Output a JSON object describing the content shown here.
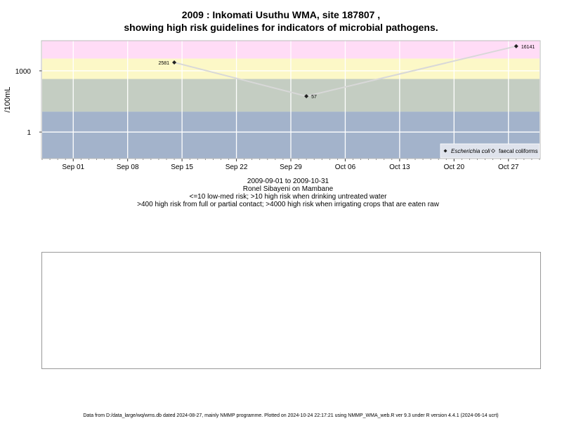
{
  "title_line1": "2009 : Inkomati Usuthu WMA, site 187807 ,",
  "title_line2": "showing high risk guidelines for indicators of microbial pathogens.",
  "subtitle": {
    "range": "2009-09-01 to 2009-10-31",
    "sampler": "Ronel Sibayeni on Mambane",
    "note1": "<=10 low-med risk; >10 high risk when drinking untreated water",
    "note2": ">400 high risk from full or partial contact; >4000 high risk when irrigating crops that are eaten raw"
  },
  "footer": "Data from D:/data_large/wq/wms.db dated 2024-08-27, mainly NMMP programme. Plotted on 2024-10-24 22:17:21 using NMMP_WMA_web.R ver 9.3 under R version 4.4.1 (2024-06-14 ucrt)",
  "colors": {
    "band_low": "#a3b3cb",
    "band_med": "#c4cdc2",
    "band_high": "#fcf8c7",
    "band_very_high": "#ffdcf6",
    "line": "#d8d8d8",
    "marker": "#222222"
  },
  "chart_data": {
    "type": "line",
    "ylabel": "/100mL",
    "y_scale": "log10",
    "ylim": [
      0.05,
      30000
    ],
    "yticks": [
      1,
      1000
    ],
    "ytick_labels": [
      "1",
      "1000"
    ],
    "xlim": [
      "2009-08-28",
      "2009-10-31"
    ],
    "xticks": [
      "2009-09-01",
      "2009-09-08",
      "2009-09-15",
      "2009-09-22",
      "2009-09-29",
      "2009-10-06",
      "2009-10-13",
      "2009-10-20",
      "2009-10-27"
    ],
    "xtick_labels": [
      "Sep 01",
      "Sep 08",
      "Sep 15",
      "Sep 22",
      "Sep 29",
      "Oct 06",
      "Oct 13",
      "Oct 20",
      "Oct 27"
    ],
    "grid": true,
    "risk_bands": [
      {
        "from": 0.05,
        "to": 10,
        "color": "#a3b3cb"
      },
      {
        "from": 10,
        "to": 400,
        "color": "#c4cdc2"
      },
      {
        "from": 400,
        "to": 4000,
        "color": "#fcf8c7"
      },
      {
        "from": 4000,
        "to": 30000,
        "color": "#ffdcf6"
      }
    ],
    "legend_position": "bottom-right",
    "series": [
      {
        "name": "Escherichia coli",
        "marker": "diamond-filled",
        "x": [
          "2009-09-14",
          "2009-10-01",
          "2009-10-28"
        ],
        "y": [
          2581,
          57,
          16141
        ],
        "labels": [
          "2581",
          "57",
          "16141"
        ]
      },
      {
        "name": "faecal coliforms",
        "marker": "diamond-open",
        "x": [],
        "y": []
      }
    ]
  }
}
